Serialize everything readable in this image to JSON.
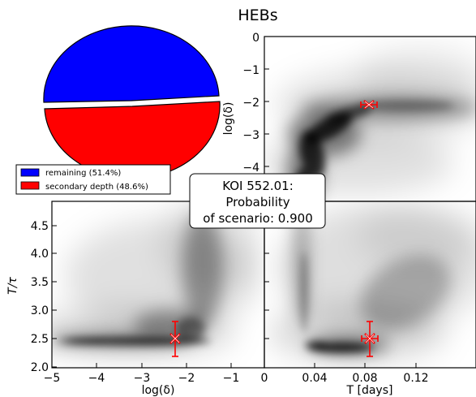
{
  "chart_data": [
    {
      "type": "pie",
      "title": "HEBs",
      "slices": [
        {
          "label": "remaining (51.4%)",
          "value": 51.4,
          "color": "#0000ff"
        },
        {
          "label": "secondary depth (48.6%)",
          "value": 48.6,
          "color": "#ff0000"
        }
      ],
      "legend_position": "bottom-left"
    },
    {
      "type": "heatmap",
      "panel": "top-right",
      "ylabel": "log(δ)",
      "xlim": [
        0.0,
        0.15
      ],
      "ylim": [
        -4.3,
        0.0
      ],
      "y_ticks": [
        "0",
        "−1",
        "−2",
        "−3",
        "−4"
      ],
      "marker": {
        "x": 0.08,
        "y": -2.05,
        "color": "#ff0000"
      }
    },
    {
      "type": "heatmap",
      "panel": "bottom-left",
      "xlabel": "log(δ)",
      "ylabel": "T/τ",
      "xlim": [
        -5.0,
        -0.3
      ],
      "ylim": [
        2.0,
        4.9
      ],
      "x_ticks": [
        "−5",
        "−4",
        "−3",
        "−2",
        "−1"
      ],
      "y_ticks": [
        "2.0",
        "2.5",
        "3.0",
        "3.5",
        "4.0",
        "4.5"
      ],
      "marker": {
        "x": -2.05,
        "y": 2.48,
        "yerr": [
          2.18,
          2.8
        ],
        "color": "#ff0000"
      }
    },
    {
      "type": "heatmap",
      "panel": "bottom-right",
      "xlabel": "T [days]",
      "xlim": [
        0.0,
        0.15
      ],
      "ylim": [
        2.0,
        4.9
      ],
      "x_ticks": [
        "0",
        "0.04",
        "0.08",
        "0.12"
      ],
      "marker": {
        "x": 0.08,
        "y": 2.48,
        "yerr": [
          2.18,
          2.8
        ],
        "color": "#ff0000"
      }
    }
  ],
  "annotation": {
    "lines": [
      "KOI 552.01:",
      "Probability",
      "of scenario: 0.900"
    ]
  },
  "colors": {
    "axes": "#000000",
    "density": "#000000",
    "marker": "#ff0000"
  }
}
